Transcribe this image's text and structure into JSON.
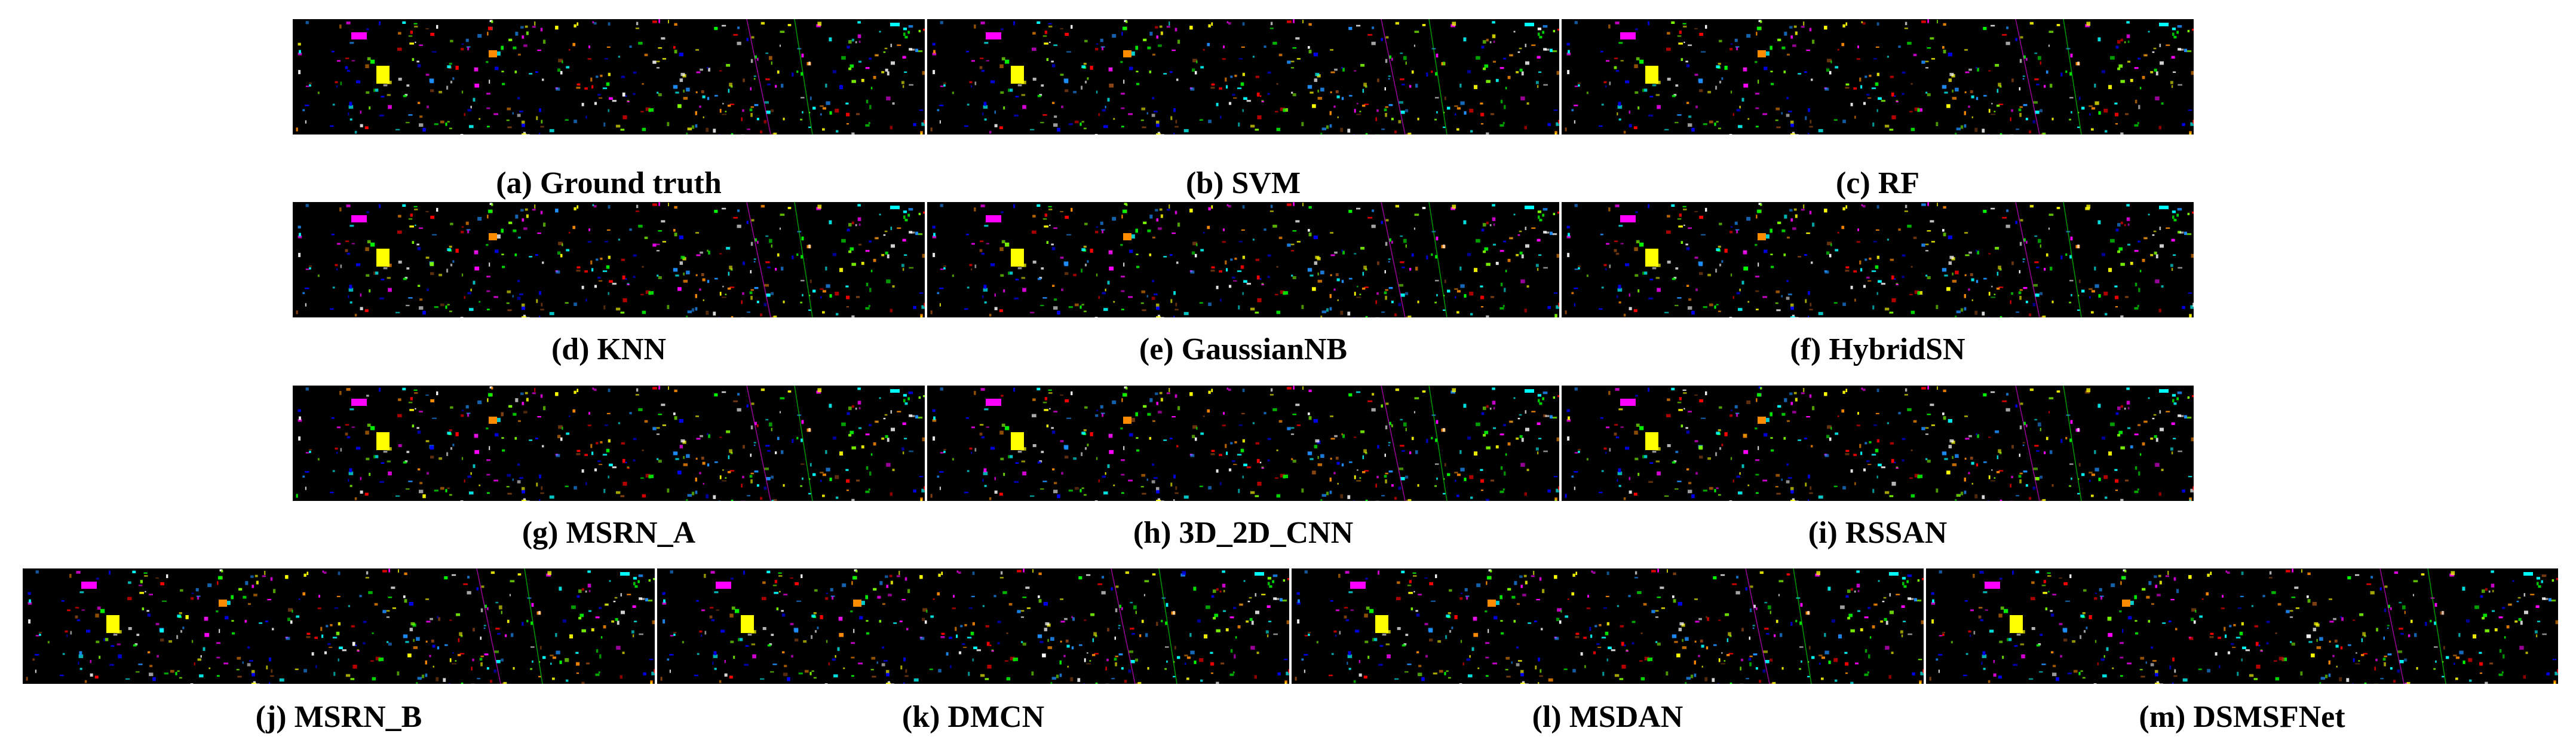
{
  "figure": {
    "panels": [
      {
        "id": "a",
        "caption": "(a) Ground truth"
      },
      {
        "id": "b",
        "caption": "(b) SVM"
      },
      {
        "id": "c",
        "caption": "(c) RF"
      },
      {
        "id": "d",
        "caption": "(d) KNN"
      },
      {
        "id": "e",
        "caption": "(e) GaussianNB"
      },
      {
        "id": "f",
        "caption": "(f) HybridSN"
      },
      {
        "id": "g",
        "caption": "(g) MSRN_A"
      },
      {
        "id": "h",
        "caption": "(h) 3D_2D_CNN"
      },
      {
        "id": "i",
        "caption": "(i) RSSAN"
      },
      {
        "id": "j",
        "caption": "(j) MSRN_B"
      },
      {
        "id": "k",
        "caption": "(k) DMCN"
      },
      {
        "id": "l",
        "caption": "(l) MSDAN"
      },
      {
        "id": "m",
        "caption": "(m) DSMSFNet"
      }
    ],
    "map_colors": {
      "background": "#000000",
      "classes": [
        "#00ff00",
        "#0000ff",
        "#ff00ff",
        "#ffff00",
        "#00ffff",
        "#ff8c00",
        "#ffffff",
        "#8b4513",
        "#ff0000",
        "#7fff00",
        "#1e90ff"
      ]
    }
  }
}
